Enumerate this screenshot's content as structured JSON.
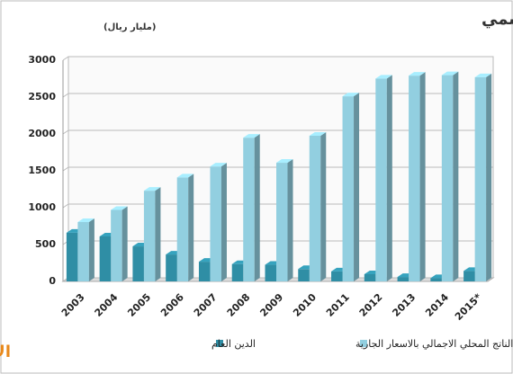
{
  "chart_data": {
    "type": "bar3d",
    "title": "تطور الدين العام مقارنة بالناتج المحلي الإجمالي الإسمي",
    "subtitle": "(مليار ريال)",
    "logo": "الاقتصادية",
    "categories": [
      "2003",
      "2004",
      "2005",
      "2006",
      "2007",
      "2008",
      "2009",
      "2010",
      "2011",
      "2012",
      "2013",
      "2014",
      "2015*"
    ],
    "series": [
      {
        "name": "الدين العام",
        "color": "#2f8ea5",
        "values": [
          660,
          610,
          475,
          365,
          267,
          235,
          225,
          167,
          135,
          98,
          60,
          44,
          142
        ]
      },
      {
        "name": "الناتج المحلي الاجمالي بالاسعار الجارية",
        "color": "#92cfe0",
        "values": [
          805,
          970,
          1230,
          1410,
          1559,
          1949,
          1609,
          1976,
          2511,
          2752,
          2791,
          2798,
          2770
        ]
      }
    ],
    "ylim": [
      0,
      3000
    ],
    "yticks": [
      0,
      500,
      1000,
      1500,
      2000,
      2500,
      3000
    ],
    "grid": true
  }
}
